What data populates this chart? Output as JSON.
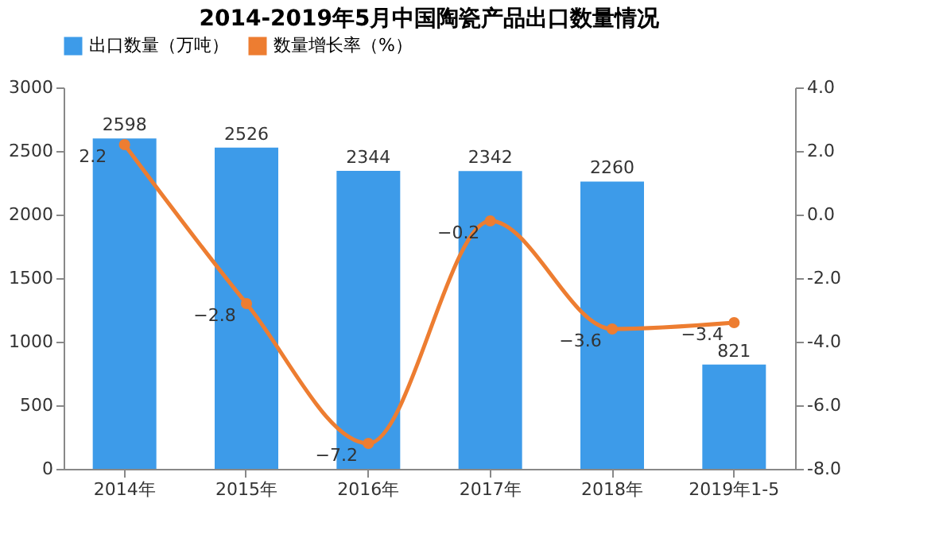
{
  "chart_data": {
    "type": "bar",
    "title": "2014-2019年5月中国陶瓷产品出口数量情况",
    "categories": [
      "2014年",
      "2015年",
      "2016年",
      "2017年",
      "2018年",
      "2019年1-5"
    ],
    "series": [
      {
        "name": "出口数量（万吨）",
        "color": "#3d9be9",
        "values": [
          2598,
          2526,
          2344,
          2342,
          2260,
          821
        ]
      },
      {
        "name": "数量增长率（%）",
        "type": "line",
        "axis": "y2",
        "color": "#ed7d31",
        "marker": "circle",
        "values": [
          2.2,
          -2.8,
          -7.2,
          -0.2,
          -3.6,
          -3.4
        ]
      }
    ],
    "ylim": [
      0,
      3000
    ],
    "yticks": [
      0,
      500,
      1000,
      1500,
      2000,
      2500,
      3000
    ],
    "y2lim": [
      -8,
      4
    ],
    "y2ticks": [
      {
        "value": -8,
        "label": "-8.0"
      },
      {
        "value": -6,
        "label": "-6.0"
      },
      {
        "value": -4,
        "label": "-4.0"
      },
      {
        "value": -2,
        "label": "-2.0"
      },
      {
        "value": 0,
        "label": "0.0"
      },
      {
        "value": 2,
        "label": "2.0"
      },
      {
        "value": 4,
        "label": "4.0"
      }
    ],
    "data_labels": true,
    "legend": "top",
    "grid": false
  }
}
